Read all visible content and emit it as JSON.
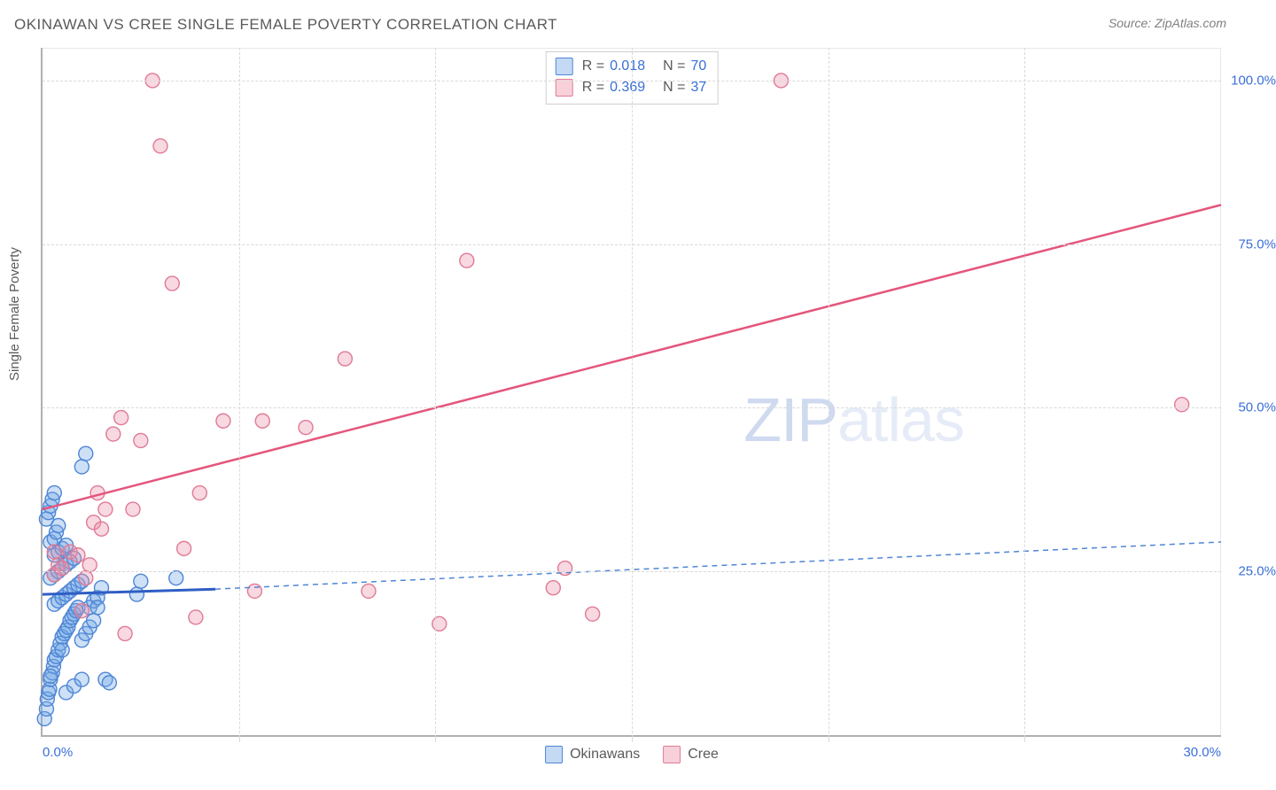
{
  "title": "OKINAWAN VS CREE SINGLE FEMALE POVERTY CORRELATION CHART",
  "source_label": "Source: ZipAtlas.com",
  "y_axis_label": "Single Female Poverty",
  "watermark": {
    "prefix": "ZIP",
    "suffix": "atlas"
  },
  "chart": {
    "type": "scatter",
    "xlim": [
      0,
      30
    ],
    "ylim": [
      0,
      105
    ],
    "x_ticks": [
      0.0,
      30.0
    ],
    "x_tick_labels": [
      "0.0%",
      "30.0%"
    ],
    "x_minor_ticks": [
      5,
      10,
      15,
      20,
      25
    ],
    "y_ticks": [
      25.0,
      50.0,
      75.0,
      100.0
    ],
    "y_tick_labels": [
      "25.0%",
      "50.0%",
      "75.0%",
      "100.0%"
    ],
    "grid_color": "#d9d9d9",
    "background_color": "#ffffff",
    "axis_color": "#b0b0b0",
    "marker_radius": 8,
    "series": [
      {
        "name": "Okinawans",
        "R": "0.018",
        "N": "70",
        "fill_color": "rgba(112,166,228,0.35)",
        "stroke_color": "#4f86d6",
        "trend": {
          "x1": 0,
          "y1": 21.5,
          "x2": 4.4,
          "y2": 22.3,
          "color": "#2f5ec4",
          "width": 3
        },
        "trend_extrap": {
          "x1": 4.4,
          "y1": 22.3,
          "x2": 30,
          "y2": 29.5,
          "color": "#4f86d6",
          "width": 1.5,
          "dash": "6 5"
        },
        "points": [
          [
            0.05,
            2.5
          ],
          [
            0.1,
            4.0
          ],
          [
            0.12,
            5.5
          ],
          [
            0.15,
            6.5
          ],
          [
            0.18,
            7.0
          ],
          [
            0.2,
            8.5
          ],
          [
            0.25,
            9.5
          ],
          [
            0.28,
            10.5
          ],
          [
            0.3,
            11.5
          ],
          [
            0.35,
            12.0
          ],
          [
            0.4,
            13.0
          ],
          [
            0.45,
            14.0
          ],
          [
            0.5,
            15.0
          ],
          [
            0.55,
            15.5
          ],
          [
            0.6,
            16.0
          ],
          [
            0.65,
            16.5
          ],
          [
            0.7,
            17.5
          ],
          [
            0.75,
            18.0
          ],
          [
            0.8,
            18.5
          ],
          [
            0.85,
            19.0
          ],
          [
            0.9,
            19.5
          ],
          [
            0.3,
            20.0
          ],
          [
            0.4,
            20.5
          ],
          [
            0.5,
            21.0
          ],
          [
            0.6,
            21.5
          ],
          [
            0.7,
            22.0
          ],
          [
            0.8,
            22.5
          ],
          [
            0.9,
            23.0
          ],
          [
            1.0,
            23.5
          ],
          [
            0.2,
            24.0
          ],
          [
            0.3,
            24.5
          ],
          [
            0.4,
            25.0
          ],
          [
            0.5,
            25.5
          ],
          [
            0.6,
            26.0
          ],
          [
            0.7,
            26.5
          ],
          [
            0.8,
            27.0
          ],
          [
            0.3,
            27.5
          ],
          [
            0.4,
            28.0
          ],
          [
            0.5,
            28.5
          ],
          [
            0.6,
            29.0
          ],
          [
            0.2,
            29.5
          ],
          [
            0.3,
            30.0
          ],
          [
            0.35,
            31.0
          ],
          [
            0.4,
            32.0
          ],
          [
            0.1,
            33.0
          ],
          [
            0.15,
            34.0
          ],
          [
            0.2,
            35.0
          ],
          [
            0.25,
            36.0
          ],
          [
            0.3,
            37.0
          ],
          [
            1.2,
            19.5
          ],
          [
            1.3,
            20.5
          ],
          [
            1.4,
            21.0
          ],
          [
            1.5,
            22.5
          ],
          [
            1.6,
            8.5
          ],
          [
            1.7,
            8.0
          ],
          [
            1.0,
            14.5
          ],
          [
            1.1,
            15.5
          ],
          [
            1.2,
            16.5
          ],
          [
            1.3,
            17.5
          ],
          [
            1.4,
            19.5
          ],
          [
            2.4,
            21.5
          ],
          [
            2.5,
            23.5
          ],
          [
            3.4,
            24.0
          ],
          [
            1.0,
            41.0
          ],
          [
            1.1,
            43.0
          ],
          [
            0.6,
            6.5
          ],
          [
            0.8,
            7.5
          ],
          [
            1.0,
            8.5
          ],
          [
            0.2,
            9.0
          ],
          [
            0.5,
            13.0
          ]
        ]
      },
      {
        "name": "Cree",
        "R": "0.369",
        "N": "37",
        "fill_color": "rgba(236,142,168,0.35)",
        "stroke_color": "#e07a96",
        "trend": {
          "x1": 0,
          "y1": 34.5,
          "x2": 30,
          "y2": 81.0,
          "color": "#e4557c",
          "width": 2.5
        },
        "points": [
          [
            0.3,
            24.5
          ],
          [
            0.3,
            28.0
          ],
          [
            0.4,
            26.0
          ],
          [
            0.5,
            25.5
          ],
          [
            0.7,
            28.0
          ],
          [
            0.9,
            27.5
          ],
          [
            1.0,
            19.0
          ],
          [
            1.1,
            24.0
          ],
          [
            1.2,
            26.0
          ],
          [
            1.3,
            32.5
          ],
          [
            1.4,
            37.0
          ],
          [
            1.5,
            31.5
          ],
          [
            1.6,
            34.5
          ],
          [
            1.8,
            46.0
          ],
          [
            2.0,
            48.5
          ],
          [
            2.1,
            15.5
          ],
          [
            2.3,
            34.5
          ],
          [
            2.5,
            45.0
          ],
          [
            2.8,
            100.0
          ],
          [
            3.0,
            90.0
          ],
          [
            3.3,
            69.0
          ],
          [
            3.6,
            28.5
          ],
          [
            3.9,
            18.0
          ],
          [
            4.0,
            37.0
          ],
          [
            4.6,
            48.0
          ],
          [
            5.4,
            22.0
          ],
          [
            5.6,
            48.0
          ],
          [
            6.7,
            47.0
          ],
          [
            7.7,
            57.5
          ],
          [
            8.3,
            22.0
          ],
          [
            10.1,
            17.0
          ],
          [
            10.8,
            72.5
          ],
          [
            13.0,
            22.5
          ],
          [
            13.3,
            25.5
          ],
          [
            14.0,
            18.5
          ],
          [
            18.8,
            100.0
          ],
          [
            29.0,
            50.5
          ]
        ]
      }
    ]
  },
  "legend_rows": [
    {
      "swatch": "sw-blue",
      "R": "0.018",
      "N": "70"
    },
    {
      "swatch": "sw-pink",
      "R": "0.369",
      "N": "37"
    }
  ],
  "bottom_legend": [
    {
      "swatch": "sw-blue",
      "label": "Okinawans"
    },
    {
      "swatch": "sw-pink",
      "label": "Cree"
    }
  ],
  "fonts": {
    "title_size": 17,
    "tick_size": 15,
    "legend_size": 16
  },
  "colors": {
    "tick_text": "#3a6fd8",
    "title_text": "#5a5a5a",
    "source_text": "#808080",
    "watermark_strong": "#cfdaf0",
    "watermark_light": "#e6ecf7"
  }
}
